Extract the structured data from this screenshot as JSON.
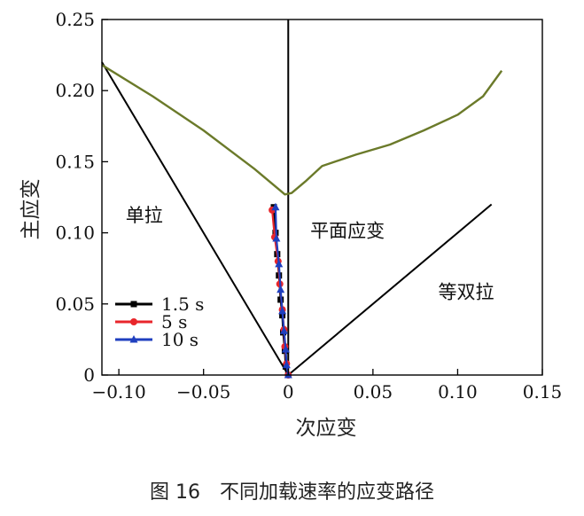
{
  "chart_data": {
    "type": "line",
    "title": "",
    "xlabel": "次应变",
    "ylabel": "主应变",
    "xlim": [
      -0.11,
      0.15
    ],
    "ylim": [
      0,
      0.25
    ],
    "xticks": [
      -0.1,
      -0.05,
      0,
      0.05,
      0.1,
      0.15
    ],
    "xtick_labels": [
      "−0.10",
      "−0.05",
      "0",
      "0.05",
      "0.10",
      "0.15"
    ],
    "yticks": [
      0,
      0.05,
      0.1,
      0.15,
      0.2,
      0.25
    ],
    "ytick_labels": [
      "0",
      "0.05",
      "0.10",
      "0.15",
      "0.20",
      "0.25"
    ],
    "grid": false,
    "legend_position": "lower-left",
    "region_labels": [
      {
        "text": "单拉",
        "x": -0.085,
        "y": 0.108
      },
      {
        "text": "平面应变",
        "x": 0.035,
        "y": 0.097
      },
      {
        "text": "等双拉",
        "x": 0.105,
        "y": 0.054
      }
    ],
    "reference_lines": [
      {
        "id": "uniaxial",
        "color": "#000000",
        "points": [
          [
            -0.11,
            0.22
          ],
          [
            0,
            0
          ]
        ]
      },
      {
        "id": "plane-strain",
        "color": "#000000",
        "points": [
          [
            0,
            0
          ],
          [
            0,
            0.25
          ]
        ]
      },
      {
        "id": "biaxial",
        "color": "#000000",
        "points": [
          [
            0,
            0
          ],
          [
            0.12,
            0.12
          ]
        ]
      }
    ],
    "flc_curve": {
      "color": "#6b7a2a",
      "points": [
        [
          -0.11,
          0.218
        ],
        [
          -0.08,
          0.196
        ],
        [
          -0.05,
          0.172
        ],
        [
          -0.02,
          0.145
        ],
        [
          -0.005,
          0.13
        ],
        [
          -0.002,
          0.127
        ],
        [
          0.002,
          0.128
        ],
        [
          0.01,
          0.136
        ],
        [
          0.02,
          0.147
        ],
        [
          0.04,
          0.155
        ],
        [
          0.06,
          0.162
        ],
        [
          0.08,
          0.172
        ],
        [
          0.1,
          0.183
        ],
        [
          0.115,
          0.196
        ],
        [
          0.126,
          0.214
        ]
      ]
    },
    "series": [
      {
        "name": "1.5 s",
        "color": "#000000",
        "marker": "square",
        "points": [
          [
            -0.0085,
            0.118
          ],
          [
            -0.0075,
            0.1
          ],
          [
            -0.0065,
            0.085
          ],
          [
            -0.0055,
            0.07
          ],
          [
            -0.0045,
            0.053
          ],
          [
            -0.0035,
            0.042
          ],
          [
            -0.003,
            0.03
          ],
          [
            -0.002,
            0.017
          ],
          [
            -0.0015,
            0.006
          ],
          [
            0.0,
            0.0
          ]
        ]
      },
      {
        "name": "5 s",
        "color": "#e8262b",
        "marker": "circle",
        "points": [
          [
            -0.0095,
            0.116
          ],
          [
            -0.008,
            0.097
          ],
          [
            -0.006,
            0.08
          ],
          [
            -0.005,
            0.064
          ],
          [
            -0.0035,
            0.046
          ],
          [
            -0.0025,
            0.032
          ],
          [
            -0.002,
            0.02
          ],
          [
            -0.001,
            0.008
          ],
          [
            0.0,
            0.0
          ]
        ]
      },
      {
        "name": "10 s",
        "color": "#1f3fbf",
        "marker": "triangle",
        "points": [
          [
            -0.0075,
            0.118
          ],
          [
            -0.007,
            0.096
          ],
          [
            -0.0055,
            0.078
          ],
          [
            -0.0045,
            0.06
          ],
          [
            -0.0035,
            0.045
          ],
          [
            -0.0025,
            0.031
          ],
          [
            -0.0015,
            0.018
          ],
          [
            -0.001,
            0.007
          ],
          [
            0.0,
            0.0
          ]
        ]
      }
    ]
  },
  "caption": "图 16　不同加载速率的应变路径"
}
